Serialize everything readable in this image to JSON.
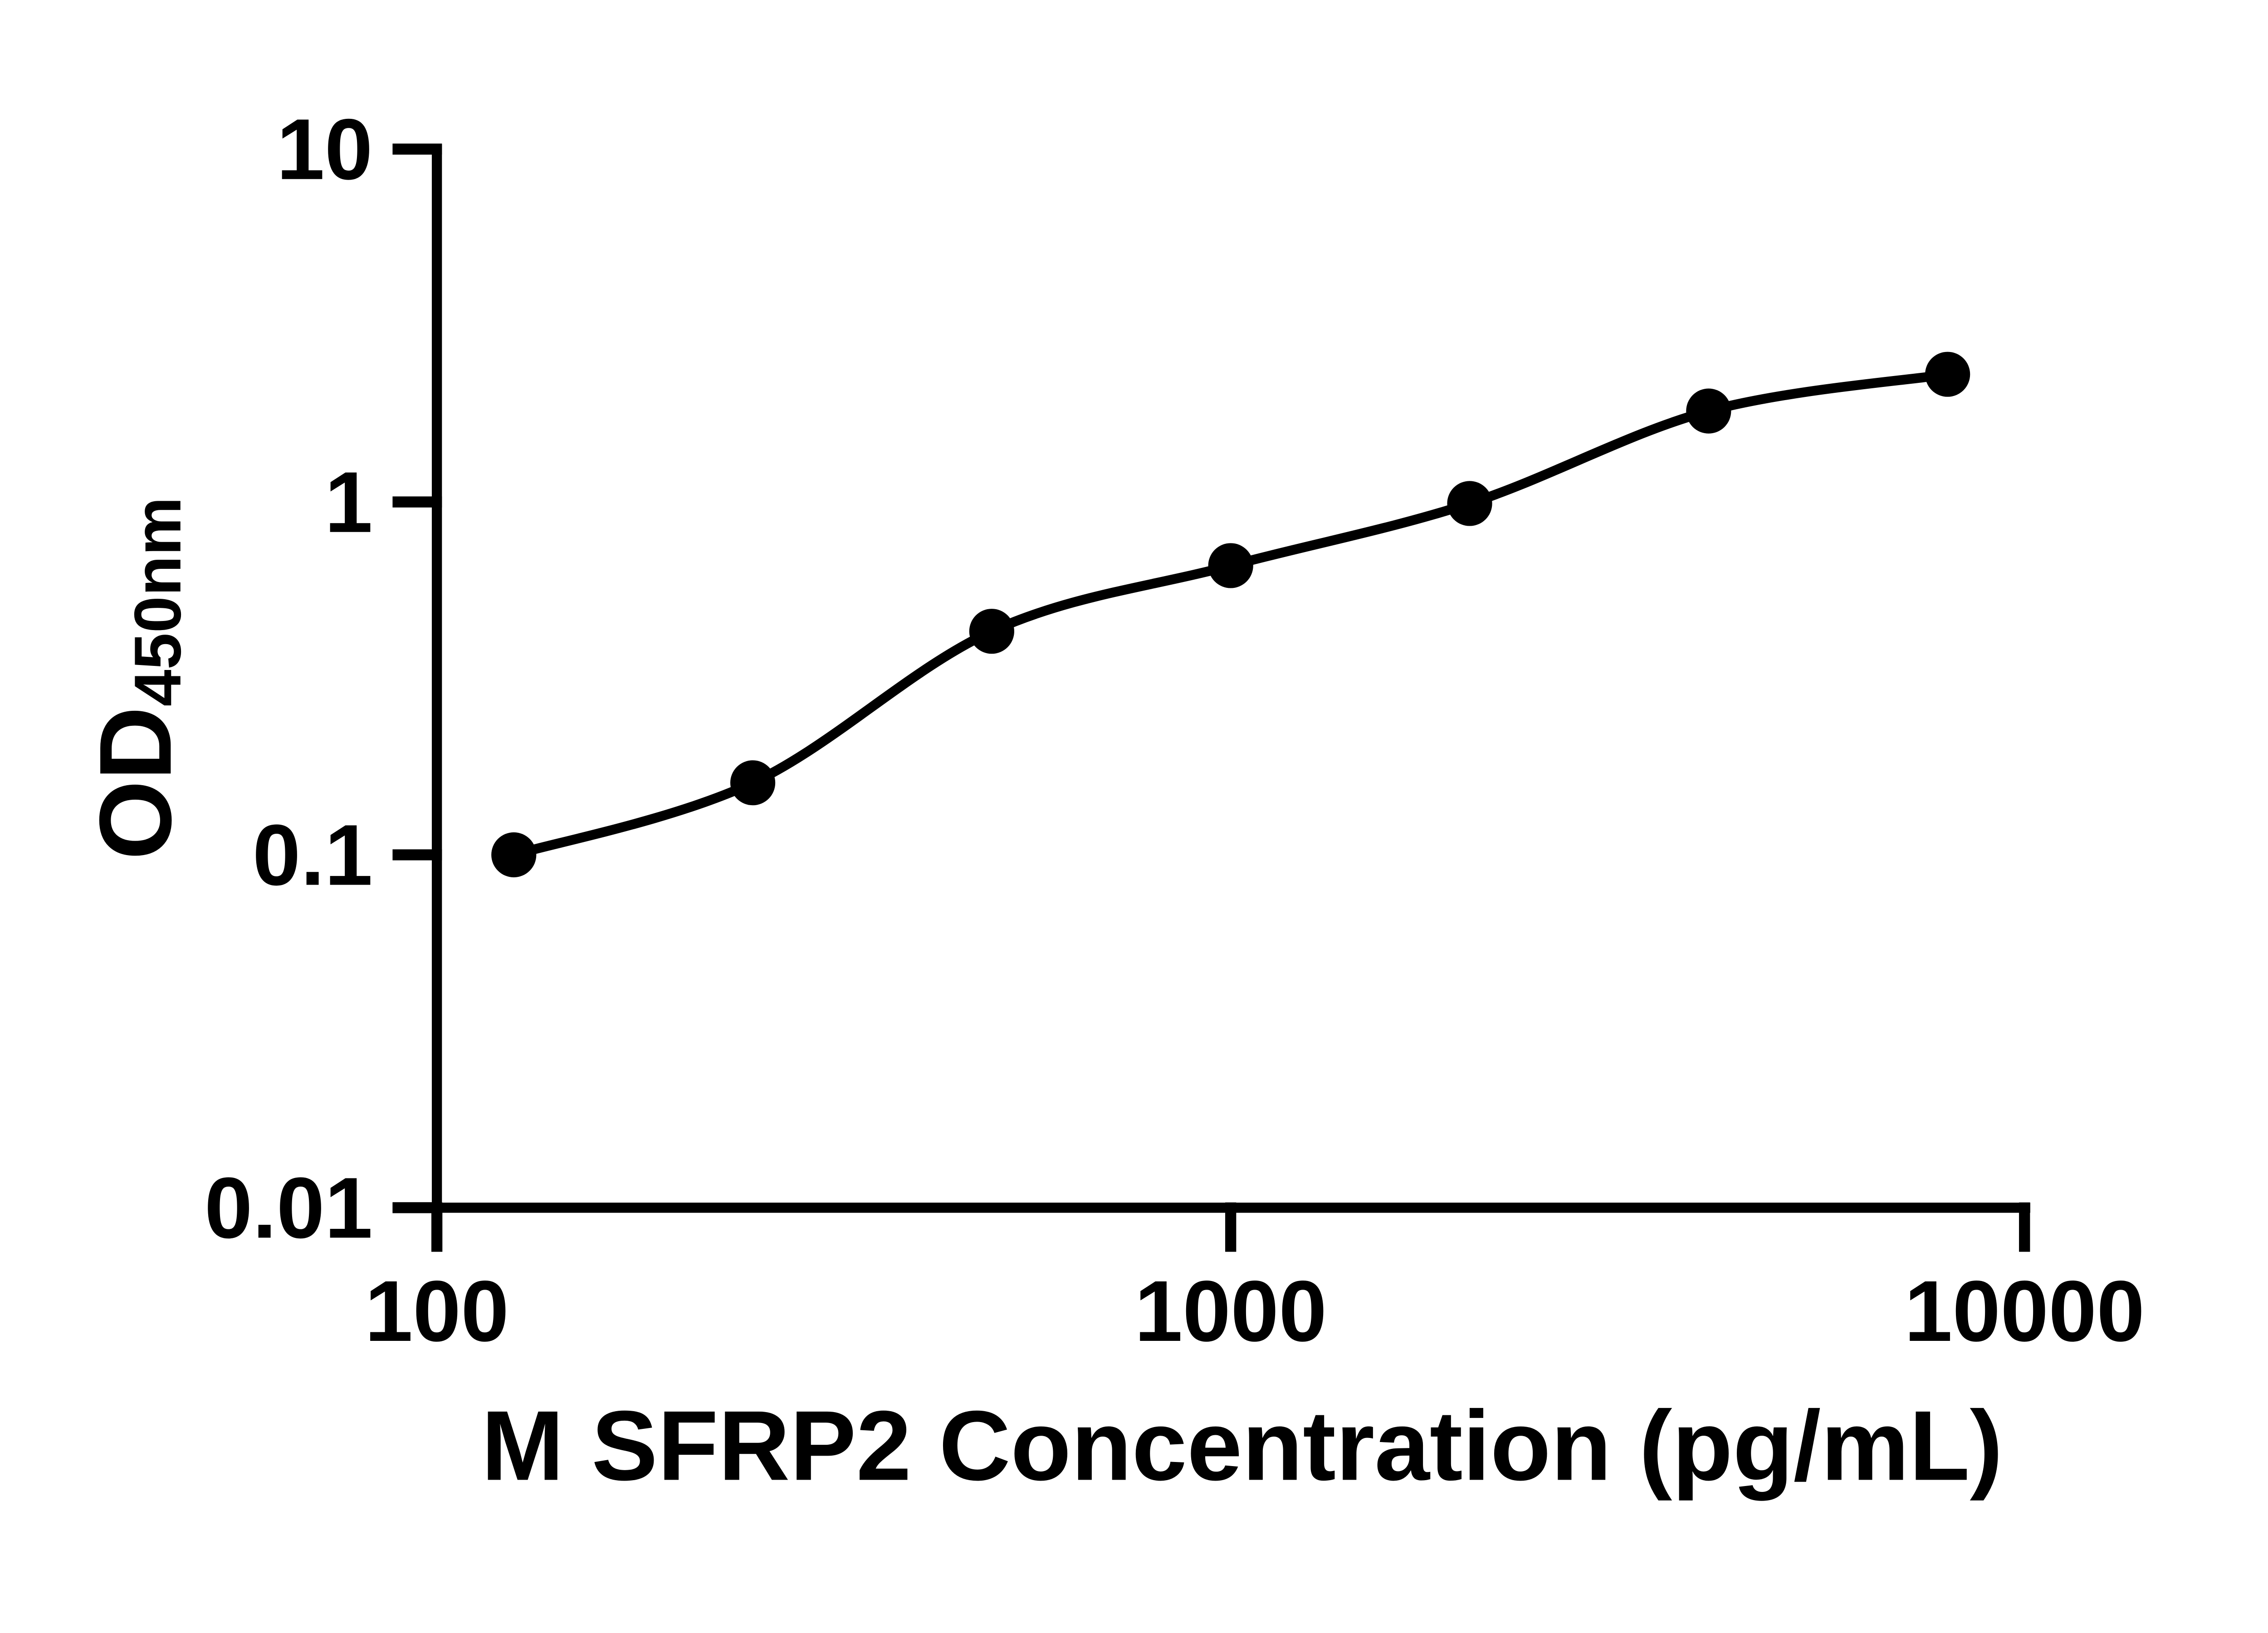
{
  "figure": {
    "background_color": "#ffffff",
    "ink_color": "#000000"
  },
  "chart_data": {
    "type": "scatter",
    "subtype": "ELISA standard curve with fitted trend line",
    "title": "",
    "xlabel": "M SFRP2 Concentration (pg/mL)",
    "ylabel_main": "OD",
    "ylabel_sub": "450nm",
    "x_scale": "log10",
    "y_scale": "log10",
    "xlim": [
      100,
      10000
    ],
    "ylim": [
      0.01,
      10
    ],
    "grid": "off",
    "legend": "none",
    "x_ticks": [
      {
        "value": 100,
        "label": "100"
      },
      {
        "value": 1000,
        "label": "1000"
      },
      {
        "value": 10000,
        "label": "10000"
      }
    ],
    "y_ticks": [
      {
        "value": 10,
        "label": "10"
      },
      {
        "value": 1,
        "label": "1"
      },
      {
        "value": 0.1,
        "label": "0.1"
      },
      {
        "value": 0.01,
        "label": "0.01"
      }
    ],
    "series": [
      {
        "name": "standard-curve",
        "marker": "filled-circle",
        "marker_color": "#000000",
        "line_color": "#000000",
        "points": [
          {
            "x": 125,
            "y": 0.1
          },
          {
            "x": 250,
            "y": 0.16
          },
          {
            "x": 500,
            "y": 0.43
          },
          {
            "x": 1000,
            "y": 0.66
          },
          {
            "x": 2000,
            "y": 0.99
          },
          {
            "x": 4000,
            "y": 1.81
          },
          {
            "x": 8000,
            "y": 2.3
          }
        ]
      }
    ]
  }
}
